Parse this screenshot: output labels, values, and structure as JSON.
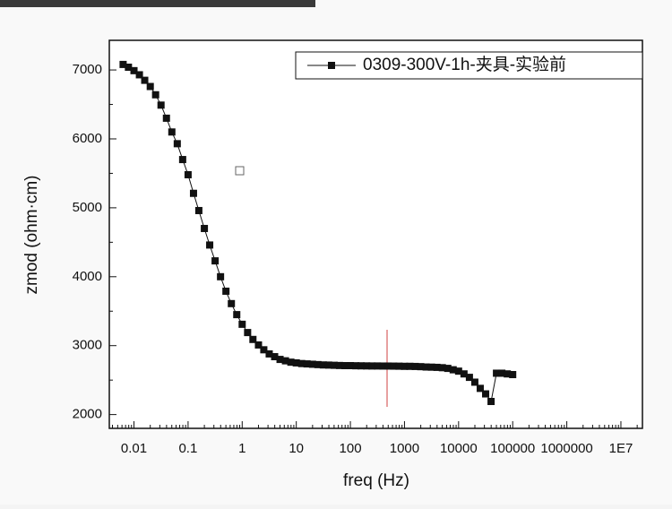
{
  "chart_data": {
    "type": "line",
    "xlabel": "freq (Hz)",
    "ylabel": "zmod (ohm·cm)",
    "xscale": "log",
    "xlim": [
      0.0035,
      25000000
    ],
    "ylim": [
      1800,
      7430
    ],
    "xticks": [
      0.01,
      0.1,
      1,
      10,
      100,
      1000,
      10000,
      100000,
      1000000,
      {
        "value": 10000000,
        "label": "1E7"
      }
    ],
    "yticks": [
      2000,
      3000,
      4000,
      5000,
      6000,
      7000
    ],
    "legend": "upper right",
    "series": [
      {
        "name": "0309-300V-1h-夹具-实验前",
        "color": "#111111",
        "x": [
          0.0063,
          0.0079,
          0.01,
          0.0126,
          0.0158,
          0.02,
          0.0251,
          0.0316,
          0.0398,
          0.0501,
          0.0631,
          0.0794,
          0.1,
          0.126,
          0.158,
          0.2,
          0.251,
          0.316,
          0.398,
          0.501,
          0.631,
          0.794,
          1,
          1.26,
          1.58,
          2,
          2.51,
          3.16,
          3.98,
          5.01,
          6.31,
          7.94,
          10,
          12.6,
          15.8,
          20,
          25.1,
          31.6,
          39.8,
          50.1,
          63.1,
          79.4,
          100,
          126,
          158,
          200,
          251,
          316,
          398,
          501,
          631,
          794,
          1000,
          1259,
          1585,
          1995,
          2512,
          3162,
          3981,
          5012,
          6310,
          7943,
          10000,
          12589,
          15849,
          19953,
          25119,
          31623,
          39811,
          50119,
          63096,
          79433,
          100000
        ],
        "values": [
          7080,
          7040,
          6990,
          6930,
          6850,
          6760,
          6640,
          6490,
          6300,
          6100,
          5930,
          5700,
          5480,
          5210,
          4960,
          4700,
          4460,
          4230,
          4000,
          3790,
          3610,
          3450,
          3310,
          3190,
          3090,
          3010,
          2940,
          2880,
          2840,
          2800,
          2780,
          2760,
          2750,
          2740,
          2735,
          2730,
          2725,
          2720,
          2718,
          2715,
          2712,
          2710,
          2710,
          2708,
          2707,
          2706,
          2705,
          2705,
          2704,
          2704,
          2703,
          2702,
          2700,
          2700,
          2698,
          2695,
          2690,
          2688,
          2685,
          2680,
          2670,
          2650,
          2630,
          2590,
          2540,
          2470,
          2380,
          2300,
          2190,
          2600,
          2600,
          2590,
          2580
        ]
      }
    ]
  }
}
